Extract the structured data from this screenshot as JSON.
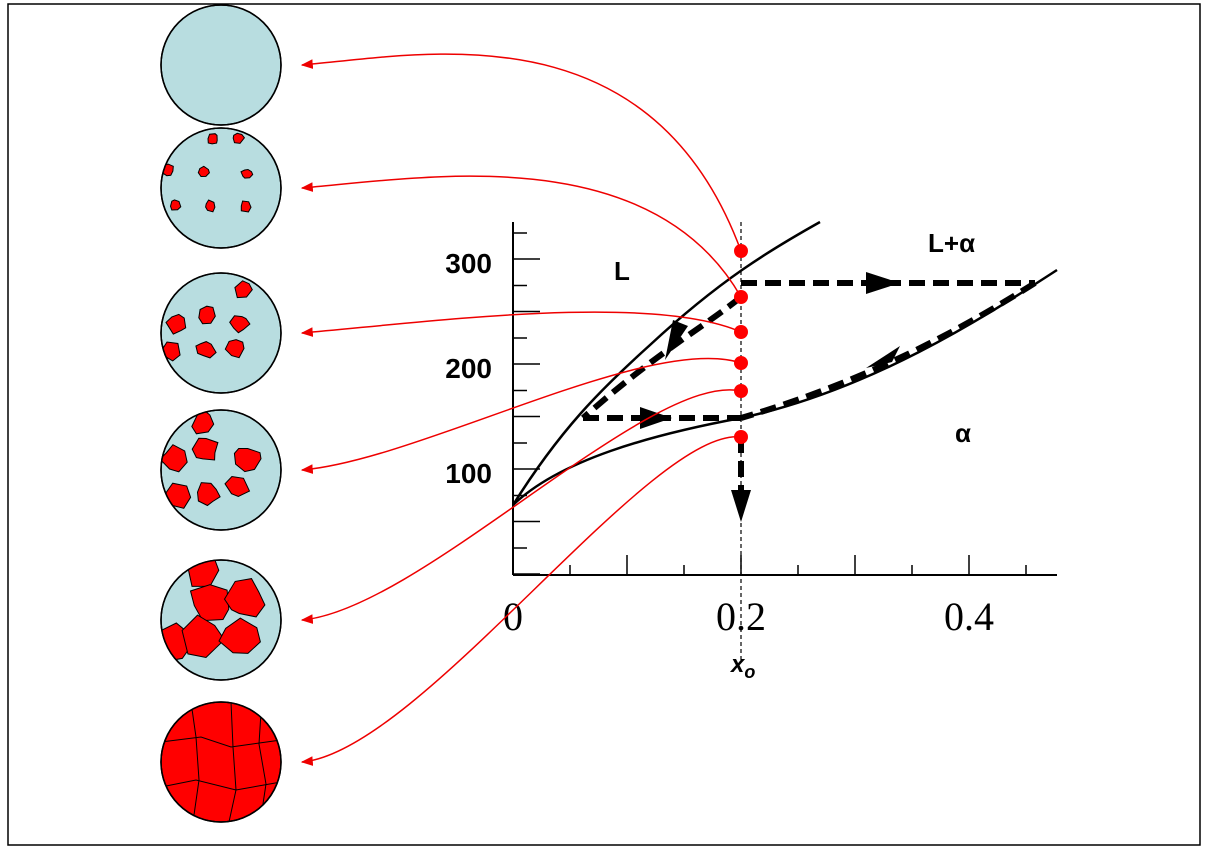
{
  "axis": {
    "y_ticks": [
      "300",
      "200",
      "100"
    ],
    "x_ticks": [
      "0",
      "0.2",
      "0.4"
    ]
  },
  "labels": {
    "liquid": "L",
    "two_phase": "L+α",
    "solid": "α",
    "composition": "x",
    "composition_subscript": "o"
  }
}
